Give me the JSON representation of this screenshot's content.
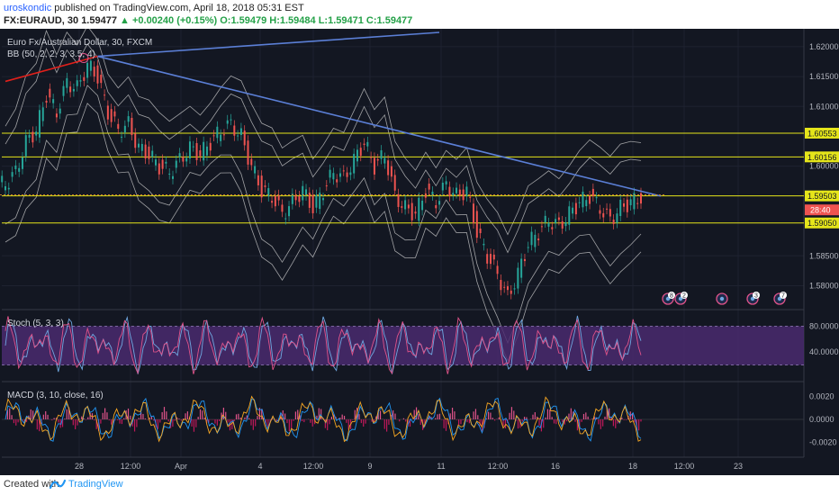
{
  "header": {
    "author": "uroskondic",
    "published_text": "published on TradingView.com, April 18, 2018 05:31 EST",
    "symbol": "FX:EURAUD, 30",
    "last": "1.59477",
    "change": "+0.00240 (+0.15%)",
    "o": "O:1.59479",
    "h": "H:1.59484",
    "l": "L:1.59471",
    "c": "C:1.59477"
  },
  "chart": {
    "legend_title": "Euro Fx/Australian Dollar, 30, FXCM",
    "bb_label": "BB (50, 2, 2, 3, 3.5, 4)",
    "stoch_label": "Stoch (5, 3, 3)",
    "macd_label": "MACD (3, 10, close, 16)",
    "price_ticks": [
      "1.62000",
      "1.61500",
      "1.61000",
      "1.60000",
      "1.58500",
      "1.58000"
    ],
    "horizontal_levels": [
      {
        "label": "1.60553",
        "value": 1.60553
      },
      {
        "label": "1.60156",
        "value": 1.60156
      },
      {
        "label": "1.59503",
        "value": 1.59503
      },
      {
        "label": "1.59050",
        "value": 1.5905
      }
    ],
    "current_price_tag": "28:40",
    "stoch_ticks": [
      "80.0000",
      "40.0000"
    ],
    "macd_ticks": [
      "0.0020",
      "0.0000",
      "-0.0020"
    ],
    "time_labels": [
      "28",
      "12:00",
      "Apr",
      "4",
      "12:00",
      "9",
      "11",
      "12:00",
      "16",
      "18",
      "12:00",
      "23"
    ],
    "event_markers": [
      "8",
      "2",
      "",
      "3",
      "7"
    ]
  },
  "chart_data": {
    "type": "line",
    "symbol": "EURAUD",
    "ylim": [
      1.576,
      1.623
    ],
    "close_series": [
      1.597,
      1.599,
      1.604,
      1.606,
      1.612,
      1.609,
      1.614,
      1.613,
      1.617,
      1.615,
      1.609,
      1.606,
      1.607,
      1.603,
      1.602,
      1.6,
      1.599,
      1.601,
      1.603,
      1.602,
      1.604,
      1.606,
      1.607,
      1.605,
      1.6,
      1.596,
      1.595,
      1.592,
      1.594,
      1.596,
      1.593,
      1.596,
      1.599,
      1.598,
      1.601,
      1.604,
      1.6,
      1.602,
      1.595,
      1.593,
      1.592,
      1.596,
      1.594,
      1.597,
      1.595,
      1.596,
      1.589,
      1.585,
      1.582,
      1.578,
      1.582,
      1.587,
      1.589,
      1.591,
      1.59,
      1.592,
      1.594,
      1.595,
      1.593,
      1.591,
      1.593,
      1.594,
      1.5948
    ],
    "trendlines": [
      {
        "from": [
          0,
          1.6142
        ],
        "to": [
          9,
          1.6184
        ]
      },
      {
        "from": [
          9,
          1.6184
        ],
        "to": [
          69,
          1.6226
        ]
      },
      {
        "from": [
          9,
          1.6184
        ],
        "to": [
          69,
          1.595
        ]
      }
    ],
    "stoch_range": [
      0,
      100
    ],
    "macd_range": [
      -0.003,
      0.003
    ]
  },
  "footer": {
    "created_with": "Created with",
    "brand": "TradingView"
  },
  "colors": {
    "background": "#131722",
    "level_line": "#e5e51a",
    "trendline": "#5b7fd6",
    "red_trend": "#e0201b",
    "bb_band": "#d0d0d0",
    "stoch_fill": "#4a2a6e",
    "k_line": "#6fa7e0",
    "d_line": "#e0538a"
  }
}
